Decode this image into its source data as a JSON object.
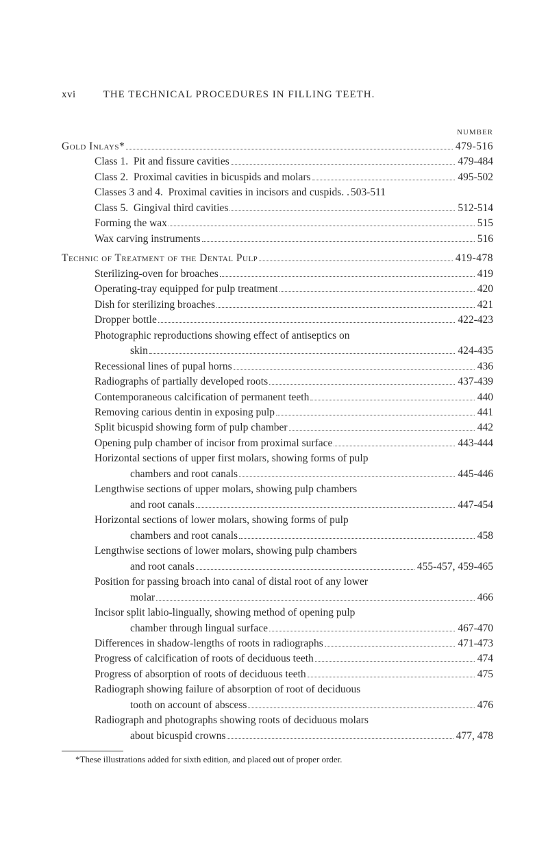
{
  "header": {
    "page_number": "xvi",
    "title": "THE TECHNICAL PROCEDURES IN FILLING TEETH."
  },
  "number_label": "NUMBER",
  "sections": [
    {
      "heading": {
        "label": "Gold Inlays*",
        "value": "479-516"
      },
      "rows": [
        {
          "label": "Class 1.  Pit and fissure cavities",
          "value": "479-484",
          "indent": 1
        },
        {
          "label": "Class 2.  Proximal cavities in bicuspids and molars",
          "value": "495-502",
          "indent": 1
        },
        {
          "label": "Classes 3 and 4.  Proximal cavities in incisors and cuspids",
          "value": "503-511",
          "indent": 1,
          "nodots": true
        },
        {
          "label": "Class 5.  Gingival third cavities",
          "value": "512-514",
          "indent": 1
        },
        {
          "label": "Forming the wax",
          "value": "515",
          "indent": 1
        },
        {
          "label": "Wax carving instruments",
          "value": "516",
          "indent": 1
        }
      ]
    },
    {
      "heading": {
        "label": "Technic of Treatment of the Dental Pulp",
        "value": "419-478"
      },
      "rows": [
        {
          "label": "Sterilizing-oven for broaches",
          "value": "419",
          "indent": 1
        },
        {
          "label": "Operating-tray equipped for pulp treatment",
          "value": "420",
          "indent": 1
        },
        {
          "label": "Dish for sterilizing broaches",
          "value": "421",
          "indent": 1
        },
        {
          "label": "Dropper bottle",
          "value": "422-423",
          "indent": 1
        },
        {
          "label": "Photographic reproductions showing effect of antiseptics on",
          "value": "",
          "indent": 1,
          "nobreak": true
        },
        {
          "label": "skin",
          "value": "424-435",
          "indent": 2
        },
        {
          "label": "Recessional lines of pupal horns",
          "value": "436",
          "indent": 1
        },
        {
          "label": "Radiographs of partially developed roots",
          "value": "437-439",
          "indent": 1
        },
        {
          "label": "Contemporaneous calcification of permanent teeth",
          "value": "440",
          "indent": 1
        },
        {
          "label": "Removing carious dentin in exposing pulp",
          "value": "441",
          "indent": 1
        },
        {
          "label": "Split bicuspid showing form of pulp chamber",
          "value": "442",
          "indent": 1
        },
        {
          "label": "Opening pulp chamber of incisor from proximal surface",
          "value": "443-444",
          "indent": 1
        },
        {
          "label": "Horizontal sections of upper first molars, showing forms of pulp",
          "value": "",
          "indent": 1,
          "nobreak": true
        },
        {
          "label": "chambers and root canals",
          "value": "445-446",
          "indent": 2
        },
        {
          "label": "Lengthwise sections of upper molars, showing pulp chambers",
          "value": "",
          "indent": 1,
          "nobreak": true
        },
        {
          "label": "and root canals",
          "value": "447-454",
          "indent": 2
        },
        {
          "label": "Horizontal sections of lower molars, showing forms of pulp",
          "value": "",
          "indent": 1,
          "nobreak": true
        },
        {
          "label": "chambers and root canals",
          "value": "458",
          "indent": 2
        },
        {
          "label": "Lengthwise sections of lower molars, showing pulp chambers",
          "value": "",
          "indent": 1,
          "nobreak": true
        },
        {
          "label": "and root canals",
          "value": "455-457, 459-465",
          "indent": 2
        },
        {
          "label": "Position for passing broach into canal of distal root of any lower",
          "value": "",
          "indent": 1,
          "nobreak": true
        },
        {
          "label": "molar",
          "value": "466",
          "indent": 2
        },
        {
          "label": "Incisor split labio-lingually, showing method of opening pulp",
          "value": "",
          "indent": 1,
          "nobreak": true
        },
        {
          "label": "chamber through lingual surface",
          "value": "467-470",
          "indent": 2
        },
        {
          "label": "Differences in shadow-lengths of roots in radiographs",
          "value": "471-473",
          "indent": 1
        },
        {
          "label": "Progress of calcification of roots of deciduous teeth",
          "value": "474",
          "indent": 1
        },
        {
          "label": "Progress of absorption of roots of deciduous teeth",
          "value": "475",
          "indent": 1
        },
        {
          "label": "Radiograph showing failure of absorption of root of deciduous",
          "value": "",
          "indent": 1,
          "nobreak": true
        },
        {
          "label": "tooth on account of abscess",
          "value": "476",
          "indent": 2
        },
        {
          "label": "Radiograph and photographs showing roots of deciduous molars",
          "value": "",
          "indent": 1,
          "nobreak": true
        },
        {
          "label": "about bicuspid crowns",
          "value": "477, 478",
          "indent": 2
        }
      ]
    }
  ],
  "footnote": "*These illustrations added for sixth edition, and placed out of proper order."
}
